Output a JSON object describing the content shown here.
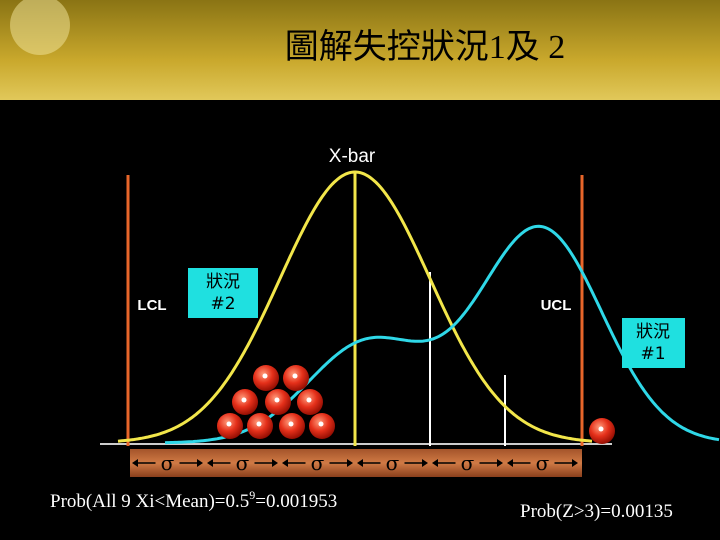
{
  "title": "圖解失控狀況1及 2",
  "labels": {
    "xbar": "X-bar",
    "lcl": "LCL",
    "ucl": "UCL"
  },
  "callouts": [
    {
      "lines": [
        "狀況",
        "#2"
      ]
    },
    {
      "lines": [
        "狀況",
        "#1"
      ]
    }
  ],
  "sigma_labels": [
    "σ",
    "σ",
    "σ",
    "σ",
    "σ",
    "σ"
  ],
  "formulas": [
    {
      "parts": [
        "Prob(All 9 Xi<Mean)=0.5",
        "9",
        "=0.001953"
      ]
    },
    {
      "parts": [
        "Prob(Z>3)=0.00135"
      ]
    }
  ]
}
